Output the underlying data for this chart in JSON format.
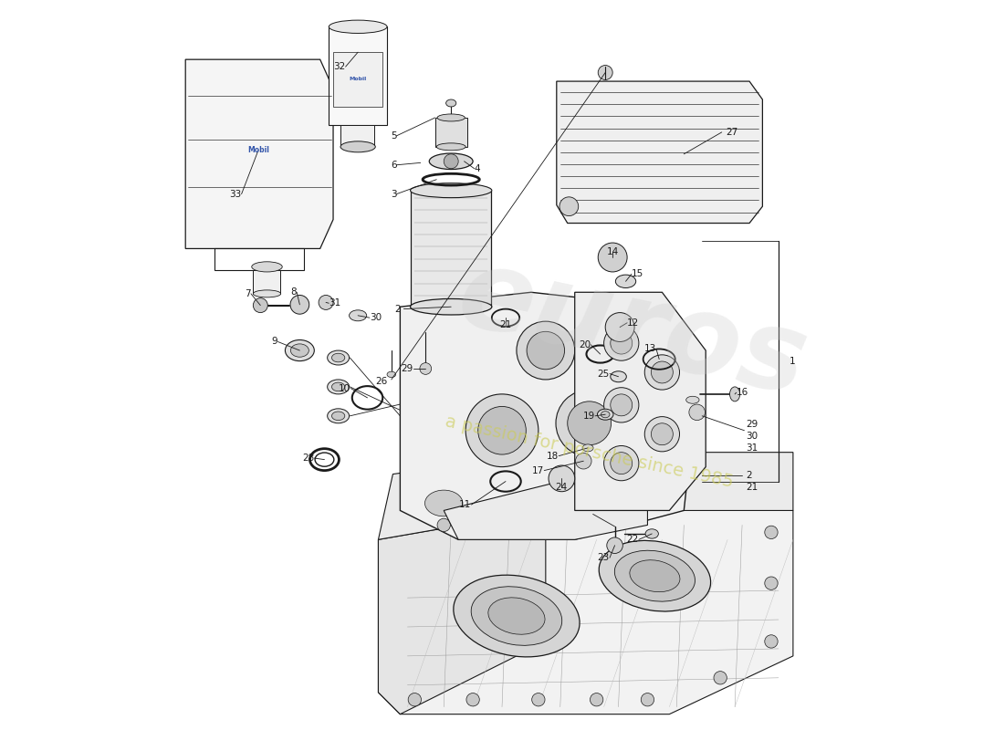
{
  "bg_color": "#ffffff",
  "line_color": "#1a1a1a",
  "text_color": "#1a1a1a",
  "fig_width": 11.0,
  "fig_height": 8.0,
  "dpi": 100,
  "watermark1": "euros",
  "watermark2": "a passion for porsche since 1985",
  "watermark1_color": "#cccccc",
  "watermark2_color": "#cccc55",
  "mobil_color": "#3355aa",
  "part_font_size": 7.5,
  "parts_positions": {
    "1": [
      0.895,
      0.5,
      "left"
    ],
    "2": [
      0.365,
      0.575,
      "left"
    ],
    "3": [
      0.355,
      0.735,
      "right"
    ],
    "4": [
      0.462,
      0.77,
      "left"
    ],
    "5": [
      0.355,
      0.815,
      "right"
    ],
    "6": [
      0.355,
      0.775,
      "right"
    ],
    "7": [
      0.155,
      0.598,
      "right"
    ],
    "8": [
      0.218,
      0.598,
      "left"
    ],
    "9": [
      0.192,
      0.532,
      "right"
    ],
    "10": [
      0.292,
      0.468,
      "right"
    ],
    "11": [
      0.458,
      0.308,
      "right"
    ],
    "12": [
      0.672,
      0.558,
      "left"
    ],
    "13": [
      0.712,
      0.522,
      "left"
    ],
    "14": [
      0.652,
      0.655,
      "left"
    ],
    "15": [
      0.678,
      0.625,
      "left"
    ],
    "16": [
      0.822,
      0.462,
      "left"
    ],
    "17": [
      0.558,
      0.355,
      "right"
    ],
    "18": [
      0.578,
      0.375,
      "right"
    ],
    "19": [
      0.628,
      0.43,
      "left"
    ],
    "20": [
      0.622,
      0.528,
      "left"
    ],
    "21": [
      0.505,
      0.555,
      "right"
    ],
    "22": [
      0.688,
      0.26,
      "left"
    ],
    "23": [
      0.648,
      0.235,
      "right"
    ],
    "24": [
      0.582,
      0.332,
      "right"
    ],
    "25": [
      0.648,
      0.488,
      "right"
    ],
    "26": [
      0.348,
      0.48,
      "right"
    ],
    "27": [
      0.802,
      0.82,
      "left"
    ],
    "28": [
      0.242,
      0.372,
      "right"
    ],
    "29": [
      0.378,
      0.495,
      "right"
    ],
    "30": [
      0.318,
      0.565,
      "right"
    ],
    "31": [
      0.262,
      0.585,
      "right"
    ],
    "32": [
      0.285,
      0.91,
      "left"
    ],
    "33": [
      0.142,
      0.735,
      "right"
    ]
  }
}
